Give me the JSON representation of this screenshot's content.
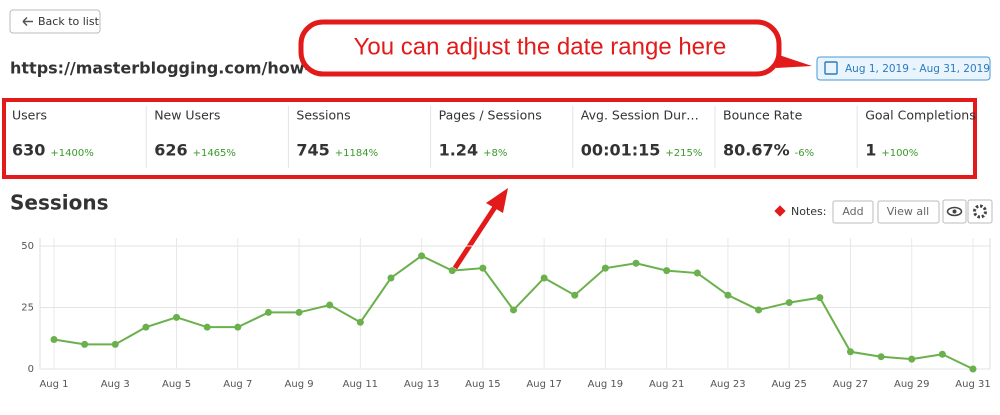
{
  "back_button": "Back to list",
  "url": "https://masterblogging.com/how-to-s",
  "annotation": "You can adjust the date range here",
  "date_range": "Aug 1, 2019 - Aug 31, 2019",
  "metrics": [
    {
      "label": "Users",
      "value": "630",
      "change": "+1400%"
    },
    {
      "label": "New Users",
      "value": "626",
      "change": "+1465%"
    },
    {
      "label": "Sessions",
      "value": "745",
      "change": "+1184%"
    },
    {
      "label": "Pages / Sessions",
      "value": "1.24",
      "change": "+8%"
    },
    {
      "label": "Avg. Session Dur…",
      "value": "00:01:15",
      "change": "+215%"
    },
    {
      "label": "Bounce Rate",
      "value": "80.67%",
      "change": "-6%"
    },
    {
      "label": "Goal Completions",
      "value": "1",
      "change": "+100%"
    }
  ],
  "notes": {
    "label": "Notes:",
    "add": "Add",
    "view_all": "View all"
  },
  "chart_data": {
    "type": "line",
    "title": "Sessions",
    "categories": [
      "Aug 1",
      null,
      "Aug 3",
      null,
      "Aug 5",
      null,
      "Aug 7",
      null,
      "Aug 9",
      null,
      "Aug 11",
      null,
      "Aug 13",
      null,
      "Aug 15",
      null,
      "Aug 17",
      null,
      "Aug 19",
      null,
      "Aug 21",
      null,
      "Aug 23",
      null,
      "Aug 25",
      null,
      "Aug 27",
      null,
      "Aug 29",
      null,
      "Aug 31"
    ],
    "values": [
      12,
      10,
      10,
      17,
      21,
      17,
      17,
      23,
      23,
      26,
      19,
      37,
      46,
      40,
      41,
      24,
      37,
      30,
      41,
      43,
      40,
      39,
      30,
      24,
      27,
      29,
      7,
      5,
      4,
      6,
      0
    ],
    "color": "#6ab04c",
    "ylim": [
      0,
      50
    ],
    "yticks": [
      0,
      25,
      50
    ],
    "grid": true
  }
}
